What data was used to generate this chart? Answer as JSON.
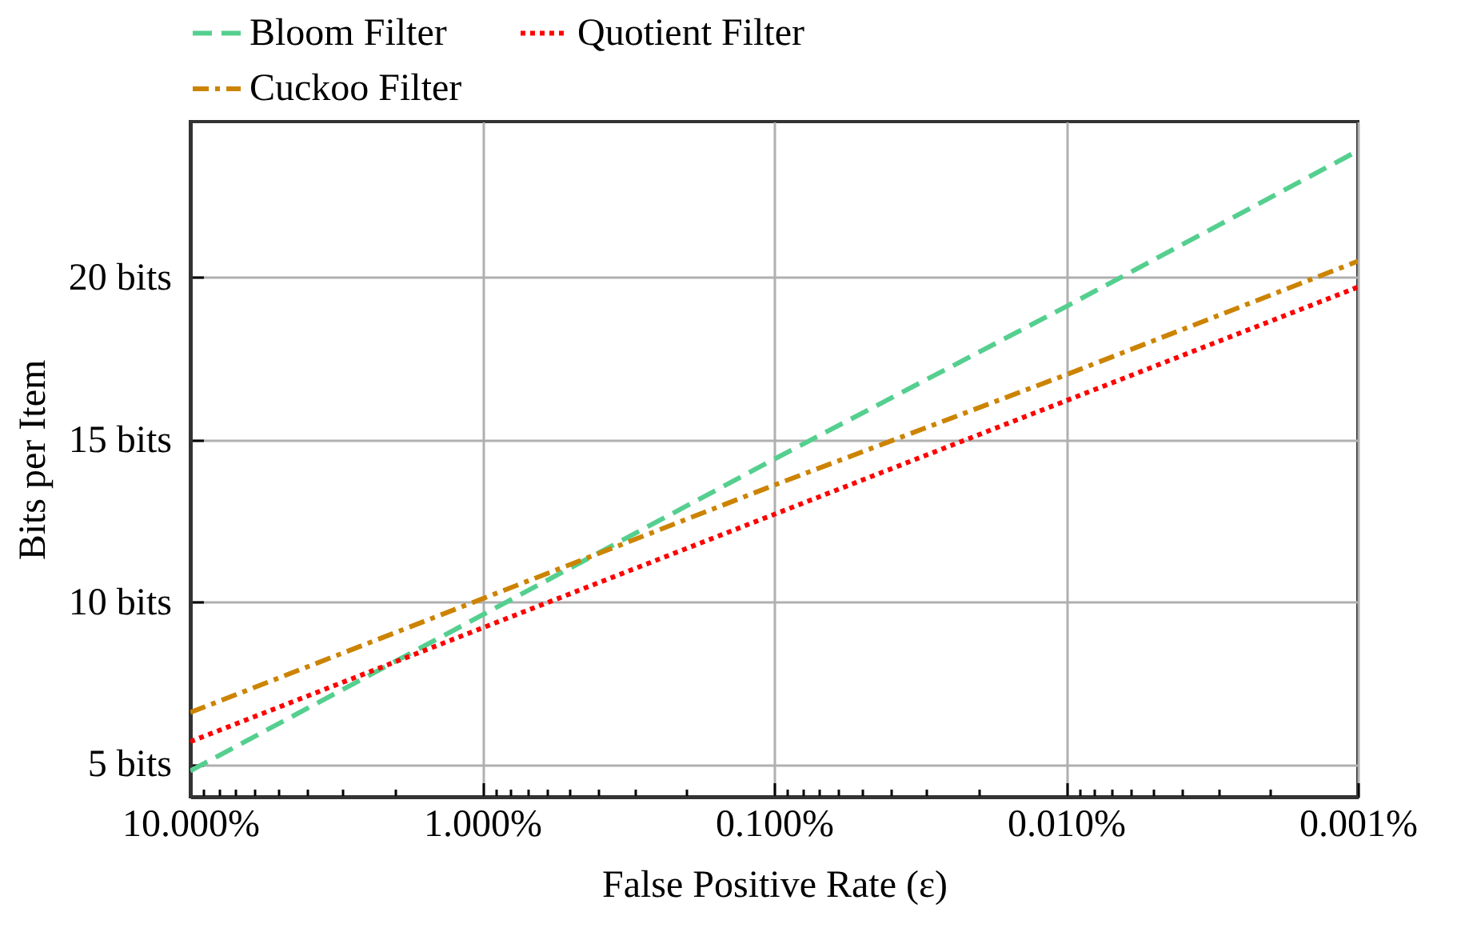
{
  "chart_data": {
    "type": "line",
    "xlabel": "False Positive Rate (ε)",
    "ylabel": "Bits per Item",
    "log": "x",
    "grid": true,
    "legend": "top",
    "marker": "none",
    "x": [
      10,
      1,
      0.1,
      0.01,
      0.001
    ],
    "xlim": [
      10,
      0.001
    ],
    "xticks": [
      {
        "value": 10,
        "label": "10.000%"
      },
      {
        "value": 9,
        "label": null
      },
      {
        "value": 8,
        "label": null
      },
      {
        "value": 7,
        "label": null
      },
      {
        "value": 6,
        "label": null
      },
      {
        "value": 5,
        "label": null
      },
      {
        "value": 4,
        "label": null
      },
      {
        "value": 3,
        "label": null
      },
      {
        "value": 2,
        "label": null
      },
      {
        "value": 1,
        "label": "1.000%"
      },
      {
        "value": 0.9,
        "label": null
      },
      {
        "value": 0.8,
        "label": null
      },
      {
        "value": 0.7,
        "label": null
      },
      {
        "value": 0.6,
        "label": null
      },
      {
        "value": 0.5,
        "label": null
      },
      {
        "value": 0.4,
        "label": null
      },
      {
        "value": 0.3,
        "label": null
      },
      {
        "value": 0.2,
        "label": null
      },
      {
        "value": 0.1,
        "label": "0.100%"
      },
      {
        "value": 0.09,
        "label": null
      },
      {
        "value": 0.08,
        "label": null
      },
      {
        "value": 0.07,
        "label": null
      },
      {
        "value": 0.06,
        "label": null
      },
      {
        "value": 0.05,
        "label": null
      },
      {
        "value": 0.04,
        "label": null
      },
      {
        "value": 0.03,
        "label": null
      },
      {
        "value": 0.02,
        "label": null
      },
      {
        "value": 0.01,
        "label": "0.010%"
      },
      {
        "value": 0.009,
        "label": null
      },
      {
        "value": 0.008,
        "label": null
      },
      {
        "value": 0.007,
        "label": null
      },
      {
        "value": 0.006,
        "label": null
      },
      {
        "value": 0.005,
        "label": null
      },
      {
        "value": 0.004,
        "label": null
      },
      {
        "value": 0.003,
        "label": null
      },
      {
        "value": 0.002,
        "label": null
      },
      {
        "value": 0.001,
        "label": "0.001%"
      }
    ],
    "ylim": [
      4,
      24.8
    ],
    "yticks": [
      {
        "value": 5,
        "label": "5 bits"
      },
      {
        "value": 10,
        "label": "10 bits"
      },
      {
        "value": 15,
        "label": "15 bits"
      },
      {
        "value": 20,
        "label": "20 bits"
      }
    ],
    "series": [
      {
        "name": "Bloom Filter",
        "color": "#55cf8f",
        "line_style": "dashed",
        "values": [
          4.8,
          9.6,
          14.4,
          19.1,
          23.9
        ]
      },
      {
        "name": "Quotient Filter",
        "color": "#ff0000",
        "line_style": "dotted",
        "values": [
          5.7,
          9.2,
          12.7,
          16.2,
          19.7
        ]
      },
      {
        "name": "Cuckoo Filter",
        "color": "#cc8400",
        "line_style": "dashdot",
        "values": [
          6.6,
          10.1,
          13.6,
          17.0,
          20.5
        ]
      }
    ]
  }
}
